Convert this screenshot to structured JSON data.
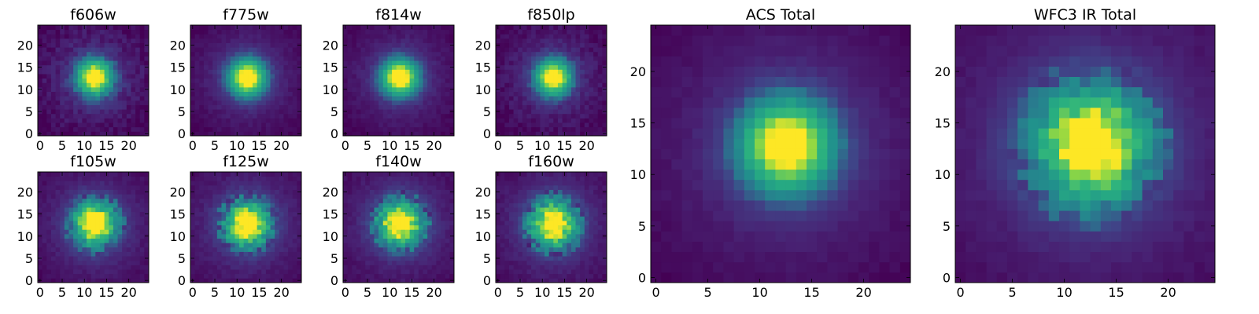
{
  "colormap": "viridis",
  "chart_data": [
    {
      "type": "heatmap",
      "title": "f606w",
      "grid": {
        "cols": 25,
        "rows": 25
      },
      "xlim": [
        -0.5,
        24.5
      ],
      "ylim": [
        -0.5,
        24.5
      ],
      "xticks": [
        "0",
        "5",
        "10",
        "15",
        "20"
      ],
      "yticks": [
        "0",
        "5",
        "10",
        "15",
        "20"
      ],
      "peak": {
        "x": 12.3,
        "y": 12.7
      },
      "sigma": {
        "x": 2.6,
        "y": 2.6
      },
      "background": 0.13,
      "noise": 0.06,
      "clumpiness": 0,
      "grid_on": false
    },
    {
      "type": "heatmap",
      "title": "f775w",
      "grid": {
        "cols": 25,
        "rows": 25
      },
      "xlim": [
        -0.5,
        24.5
      ],
      "ylim": [
        -0.5,
        24.5
      ],
      "xticks": [
        "0",
        "5",
        "10",
        "15",
        "20"
      ],
      "yticks": [
        "0",
        "5",
        "10",
        "15",
        "20"
      ],
      "peak": {
        "x": 12.3,
        "y": 12.7
      },
      "sigma": {
        "x": 2.7,
        "y": 2.7
      },
      "background": 0.12,
      "noise": 0.03,
      "clumpiness": 0,
      "grid_on": false
    },
    {
      "type": "heatmap",
      "title": "f814w",
      "grid": {
        "cols": 25,
        "rows": 25
      },
      "xlim": [
        -0.5,
        24.5
      ],
      "ylim": [
        -0.5,
        24.5
      ],
      "xticks": [
        "0",
        "5",
        "10",
        "15",
        "20"
      ],
      "yticks": [
        "0",
        "5",
        "10",
        "15",
        "20"
      ],
      "peak": {
        "x": 12.3,
        "y": 12.7
      },
      "sigma": {
        "x": 2.7,
        "y": 2.7
      },
      "background": 0.12,
      "noise": 0.03,
      "clumpiness": 0,
      "grid_on": false
    },
    {
      "type": "heatmap",
      "title": "f850lp",
      "grid": {
        "cols": 25,
        "rows": 25
      },
      "xlim": [
        -0.5,
        24.5
      ],
      "ylim": [
        -0.5,
        24.5
      ],
      "xticks": [
        "0",
        "5",
        "10",
        "15",
        "20"
      ],
      "yticks": [
        "0",
        "5",
        "10",
        "15",
        "20"
      ],
      "peak": {
        "x": 12.5,
        "y": 12.7
      },
      "sigma": {
        "x": 2.6,
        "y": 2.6
      },
      "background": 0.12,
      "noise": 0.05,
      "clumpiness": 0,
      "grid_on": false
    },
    {
      "type": "heatmap",
      "title": "f105w",
      "grid": {
        "cols": 25,
        "rows": 25
      },
      "xlim": [
        -0.5,
        24.5
      ],
      "ylim": [
        -0.5,
        24.5
      ],
      "xticks": [
        "0",
        "5",
        "10",
        "15",
        "20"
      ],
      "yticks": [
        "0",
        "5",
        "10",
        "15",
        "20"
      ],
      "peak": {
        "x": 12.3,
        "y": 12.8
      },
      "sigma": {
        "x": 3.2,
        "y": 3.2
      },
      "background": 0.12,
      "noise": 0.03,
      "clumpiness": 0.12,
      "grid_on": false
    },
    {
      "type": "heatmap",
      "title": "f125w",
      "grid": {
        "cols": 25,
        "rows": 25
      },
      "xlim": [
        -0.5,
        24.5
      ],
      "ylim": [
        -0.5,
        24.5
      ],
      "xticks": [
        "0",
        "5",
        "10",
        "15",
        "20"
      ],
      "yticks": [
        "0",
        "5",
        "10",
        "15",
        "20"
      ],
      "peak": {
        "x": 12.4,
        "y": 12.8
      },
      "sigma": {
        "x": 3.3,
        "y": 3.3
      },
      "background": 0.12,
      "noise": 0.03,
      "clumpiness": 0.14,
      "grid_on": false
    },
    {
      "type": "heatmap",
      "title": "f140w",
      "grid": {
        "cols": 25,
        "rows": 25
      },
      "xlim": [
        -0.5,
        24.5
      ],
      "ylim": [
        -0.5,
        24.5
      ],
      "xticks": [
        "0",
        "5",
        "10",
        "15",
        "20"
      ],
      "yticks": [
        "0",
        "5",
        "10",
        "15",
        "20"
      ],
      "peak": {
        "x": 12.3,
        "y": 12.8
      },
      "sigma": {
        "x": 3.3,
        "y": 3.3
      },
      "background": 0.12,
      "noise": 0.03,
      "clumpiness": 0.14,
      "grid_on": false
    },
    {
      "type": "heatmap",
      "title": "f160w",
      "grid": {
        "cols": 25,
        "rows": 25
      },
      "xlim": [
        -0.5,
        24.5
      ],
      "ylim": [
        -0.5,
        24.5
      ],
      "xticks": [
        "0",
        "5",
        "10",
        "15",
        "20"
      ],
      "yticks": [
        "0",
        "5",
        "10",
        "15",
        "20"
      ],
      "peak": {
        "x": 12.5,
        "y": 12.8
      },
      "sigma": {
        "x": 3.4,
        "y": 3.4
      },
      "background": 0.12,
      "noise": 0.03,
      "clumpiness": 0.16,
      "grid_on": false
    },
    {
      "type": "heatmap",
      "title": "ACS Total",
      "grid": {
        "cols": 25,
        "rows": 25
      },
      "xlim": [
        -0.5,
        24.5
      ],
      "ylim": [
        -0.5,
        24.5
      ],
      "xticks": [
        "0",
        "5",
        "10",
        "15",
        "20"
      ],
      "yticks": [
        "0",
        "5",
        "10",
        "15",
        "20"
      ],
      "peak": {
        "x": 12.6,
        "y": 12.8
      },
      "sigma": {
        "x": 2.9,
        "y": 2.9
      },
      "background": 0.12,
      "noise": 0.02,
      "clumpiness": 0,
      "grid_on": false
    },
    {
      "type": "heatmap",
      "title": "WFC3 IR Total",
      "grid": {
        "cols": 25,
        "rows": 25
      },
      "xlim": [
        -0.5,
        24.5
      ],
      "ylim": [
        -0.5,
        24.5
      ],
      "xticks": [
        "0",
        "5",
        "10",
        "15",
        "20"
      ],
      "yticks": [
        "0",
        "5",
        "10",
        "15",
        "20"
      ],
      "peak": {
        "x": 12.5,
        "y": 12.9
      },
      "sigma": {
        "x": 3.6,
        "y": 3.6
      },
      "background": 0.12,
      "noise": 0.02,
      "clumpiness": 0.1,
      "grid_on": false
    }
  ]
}
